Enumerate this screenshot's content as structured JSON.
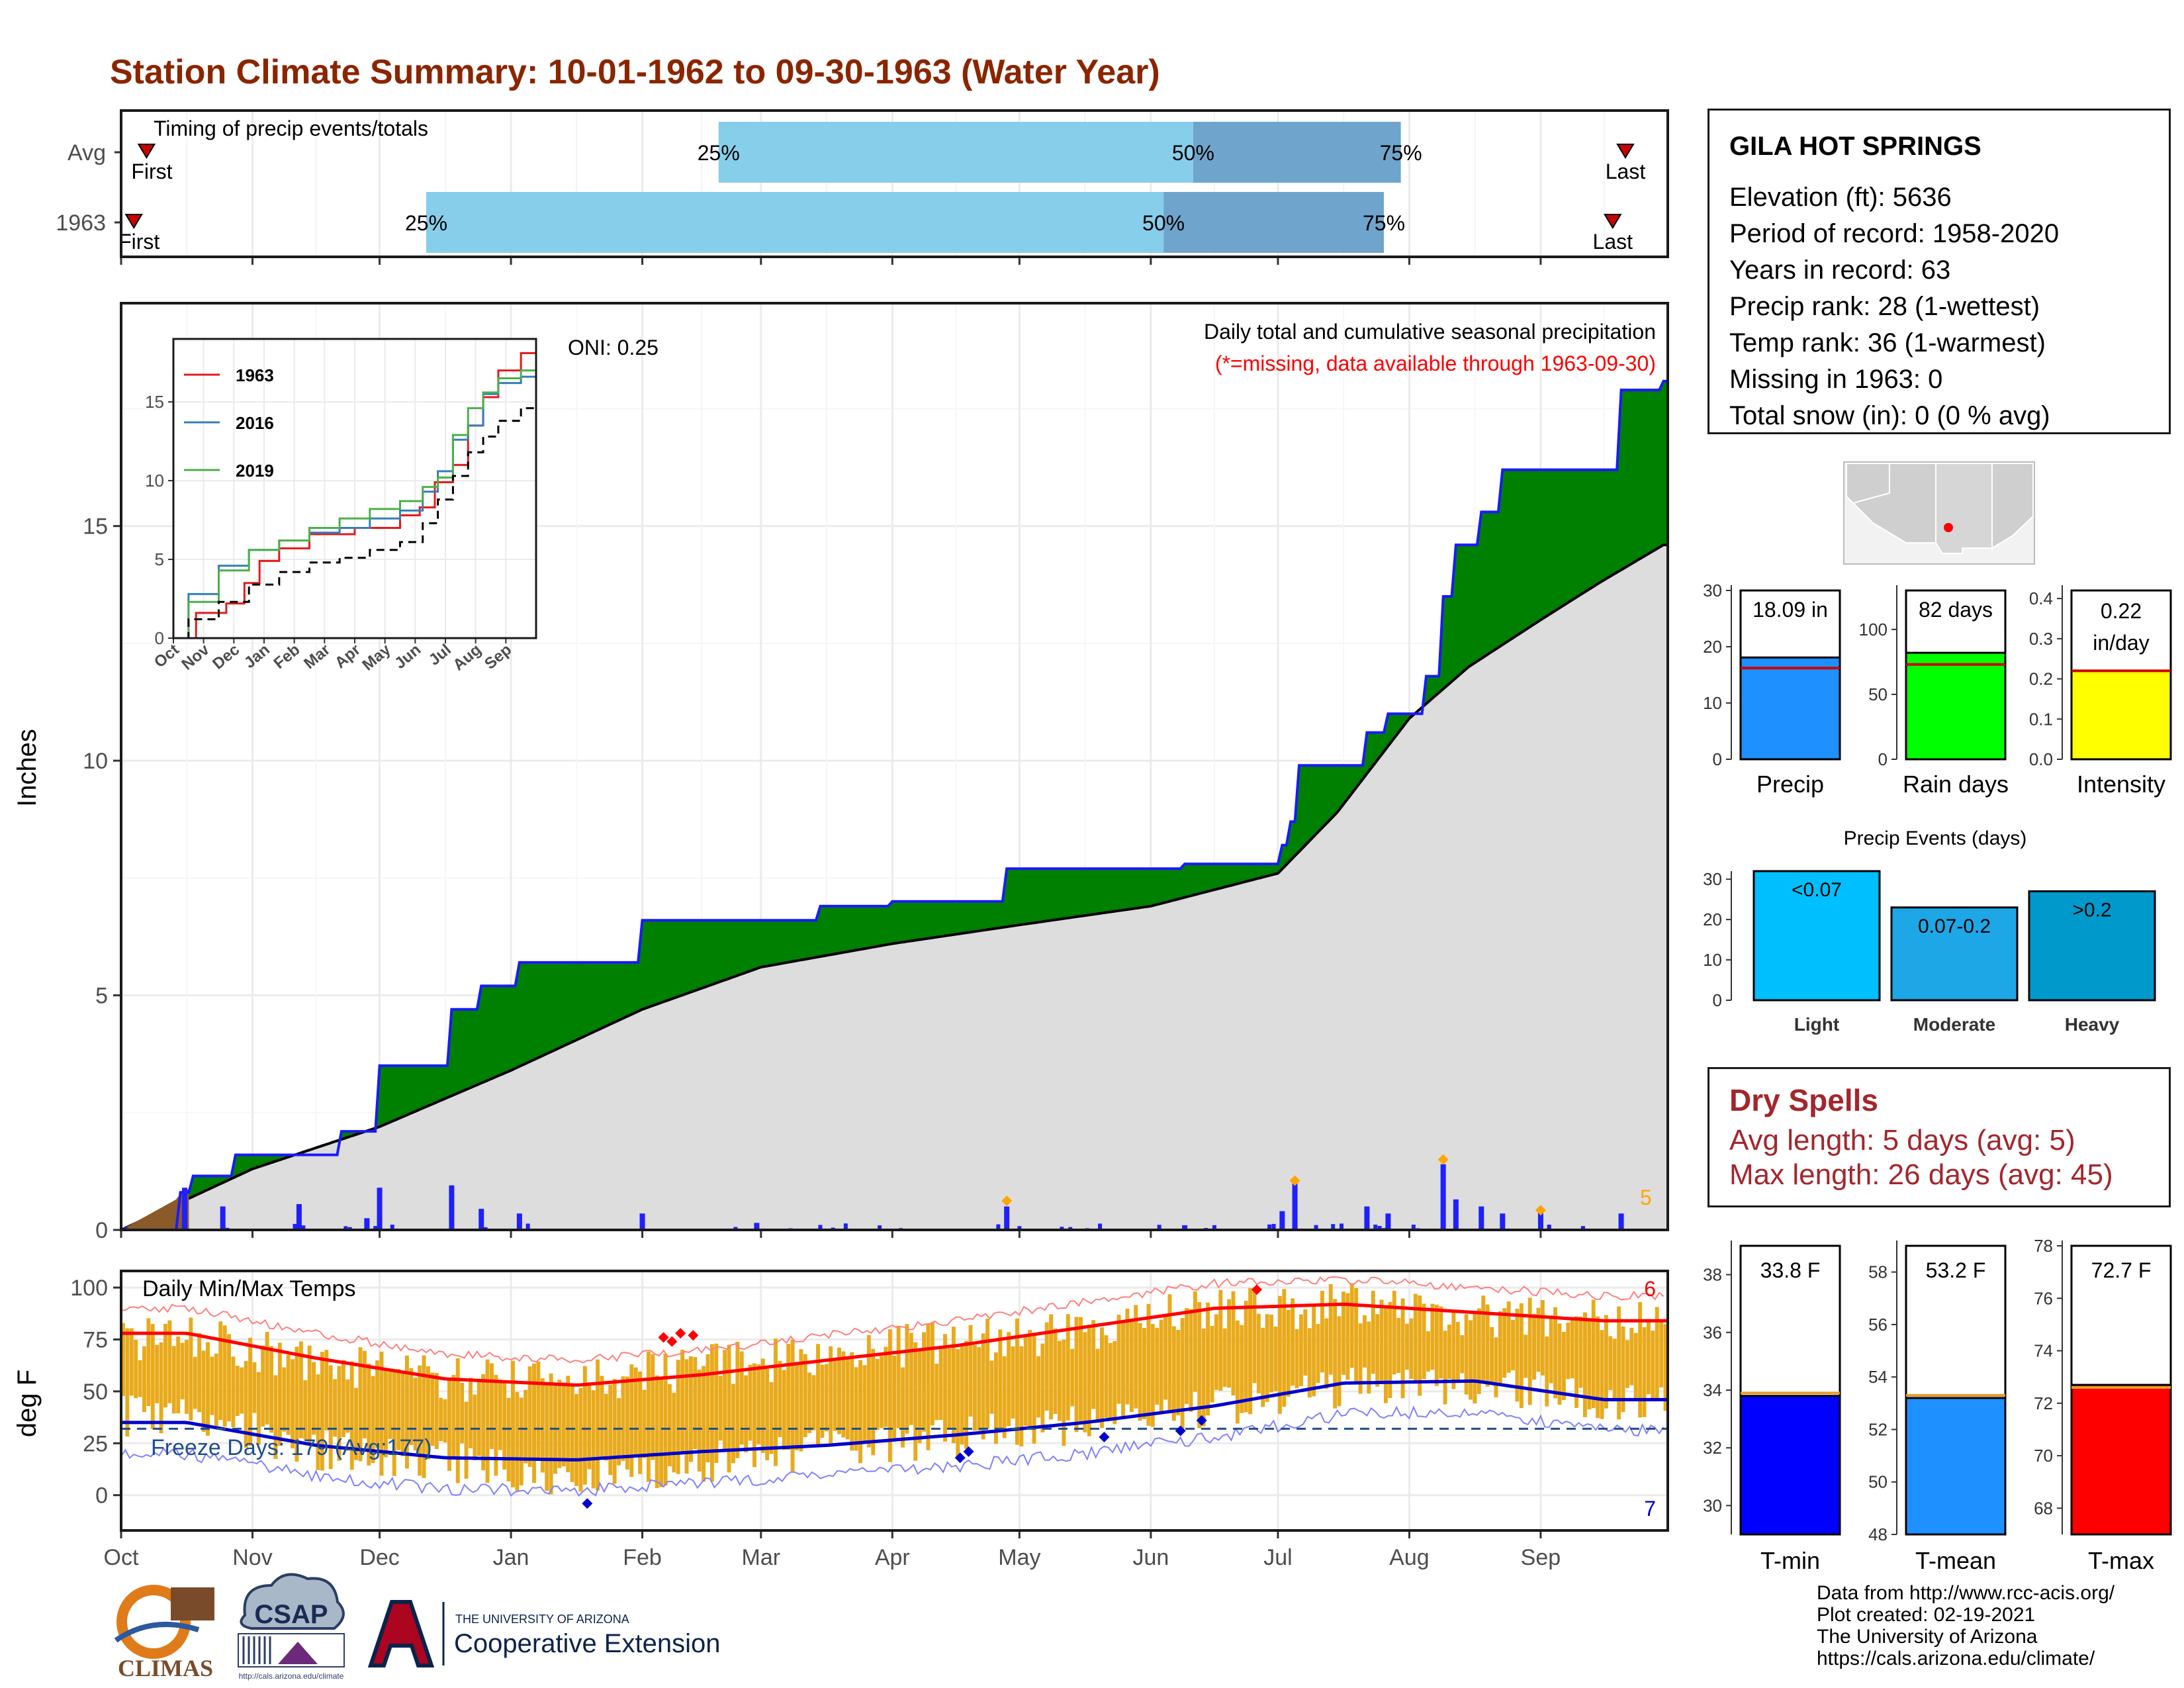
{
  "title": "Station Climate Summary: 10-01-1962 to 09-30-1963 (Water Year)",
  "colors": {
    "title": "#8b2500",
    "cumulative_1963": "#008000",
    "cumulative_avg": "#dddddd",
    "daily_bars": "#1f1fff",
    "tmax_line": "#ff0000",
    "tmin_line": "#0000cc",
    "temp_bars": "#e8aa1c",
    "timing_q1": "#87ceeb",
    "timing_q2": "#6fa5cc",
    "dry_spells": "#a4262c"
  },
  "timing": {
    "title": "Timing of precip events/totals",
    "rows": [
      {
        "label": "Avg",
        "first_label": "First",
        "last_label": "Last",
        "p25": "25%",
        "p50": "50%",
        "p75": "75%"
      },
      {
        "label": "1963",
        "first_label": "First",
        "last_label": "Last",
        "p25": "25%",
        "p50": "50%",
        "p75": "75%"
      }
    ]
  },
  "precip_panel": {
    "ylabel": "Inches",
    "y_ticks": [
      "0",
      "5",
      "10",
      "15"
    ],
    "oni": "ONI: 0.25",
    "header": "Daily total and cumulative seasonal precipitation",
    "missing_note": "(*=missing, data available through 1963-09-30)",
    "extreme_count": "5"
  },
  "inset": {
    "y_ticks": [
      "0",
      "5",
      "10",
      "15"
    ],
    "x_ticks": [
      "Oct",
      "Nov",
      "Dec",
      "Jan",
      "Feb",
      "Mar",
      "Apr",
      "May",
      "Jun",
      "Jul",
      "Aug",
      "Sep"
    ],
    "legend": [
      {
        "name": "1963",
        "color": "#e41a1c"
      },
      {
        "name": "2016",
        "color": "#377eb8"
      },
      {
        "name": "2019",
        "color": "#4daf4a"
      }
    ]
  },
  "temp_panel": {
    "title": "Daily Min/Max Temps",
    "ylabel": "deg F",
    "y_ticks": [
      "0",
      "25",
      "50",
      "75",
      "100"
    ],
    "freeze_label": "Freeze Days: 179 (Avg:177)",
    "hot_count": "6",
    "cold_count": "7"
  },
  "month_labels": [
    "Oct",
    "Nov",
    "Dec",
    "Jan",
    "Feb",
    "Mar",
    "Apr",
    "May",
    "Jun",
    "Jul",
    "Aug",
    "Sep"
  ],
  "station": {
    "name": "GILA HOT SPRINGS",
    "lines": [
      "Elevation (ft): 5636",
      "Period of record: 1958-2020",
      "Years in record: 63",
      "Precip rank: 28 (1-wettest)",
      "Temp rank: 36 (1-warmest)",
      "Missing in 1963: 0",
      "Total snow (in): 0 (0 % avg)"
    ]
  },
  "mini_bars": [
    {
      "label": "Precip",
      "value_text": "18.09 in",
      "value": 18.09,
      "avg": 16.2,
      "ylim": [
        0,
        30
      ],
      "ticks": [
        "0",
        "10",
        "20",
        "30"
      ],
      "color": "#1e90ff"
    },
    {
      "label": "Rain days",
      "value_text": "82 days",
      "value": 82,
      "avg": 73,
      "ylim": [
        0,
        130
      ],
      "ticks": [
        "0",
        "50",
        "100"
      ],
      "color": "#00ff00"
    },
    {
      "label": "Intensity",
      "value_text": "0.22 in/day",
      "value": 0.22,
      "avg": 0.22,
      "ylim": [
        0,
        0.42
      ],
      "ticks": [
        "0.0",
        "0.1",
        "0.2",
        "0.3",
        "0.4"
      ],
      "color": "#ffff00"
    }
  ],
  "events": {
    "title": "Precip Events (days)",
    "ticks": [
      "0",
      "10",
      "20",
      "30"
    ],
    "ylim": [
      0,
      32
    ],
    "categories": [
      "Light",
      "Moderate",
      "Heavy"
    ],
    "bar_labels": [
      "<0.07",
      "0.07-0.2",
      ">0.2"
    ],
    "values": [
      32,
      23,
      27
    ],
    "colors": [
      "#00bfff",
      "#1ea7e6",
      "#0099cc"
    ]
  },
  "dry_spells": {
    "title": "Dry Spells",
    "lines": [
      "Avg length: 5 days (avg: 5)",
      "Max length: 26 days (avg: 45)"
    ]
  },
  "temp_bars": [
    {
      "label": "T-min",
      "value_text": "33.8 F",
      "value": 33.8,
      "avg": 33.9,
      "ylim": [
        29,
        39
      ],
      "ticks": [
        "30",
        "32",
        "34",
        "36",
        "38"
      ],
      "color": "#0000ff"
    },
    {
      "label": "T-mean",
      "value_text": "53.2 F",
      "value": 53.2,
      "avg": 53.3,
      "ylim": [
        48,
        59
      ],
      "ticks": [
        "48",
        "50",
        "52",
        "54",
        "56",
        "58"
      ],
      "color": "#1e90ff"
    },
    {
      "label": "T-max",
      "value_text": "72.7 F",
      "value": 72.7,
      "avg": 72.6,
      "ylim": [
        67,
        78
      ],
      "ticks": [
        "68",
        "70",
        "72",
        "74",
        "76",
        "78"
      ],
      "color": "#ff0000"
    }
  ],
  "footer": {
    "lines": [
      "Data from http://www.rcc-acis.org/",
      "Plot created: 02-19-2021",
      "The University of Arizona",
      "https://cals.arizona.edu/climate/"
    ]
  },
  "logos": {
    "climas": "CLIMAS",
    "csap": "CSAP",
    "csap_url": "http://cals.arizona.edu/climate",
    "ua_small": "THE UNIVERSITY OF ARIZONA",
    "ua_big": "Cooperative Extension"
  },
  "chart_data": [
    {
      "type": "area",
      "title": "Daily total and cumulative seasonal precipitation",
      "ylabel": "Inches",
      "ylim": [
        0,
        19.5
      ],
      "x_range": [
        "1962-10-01",
        "1963-09-30"
      ],
      "series": [
        {
          "name": "1963",
          "x": [
            "1962-10-01",
            "1962-10-15",
            "1962-10-18",
            "1962-10-28",
            "1962-11-22",
            "1962-12-01",
            "1962-12-18",
            "1962-12-25",
            "1963-01-03",
            "1963-02-01",
            "1963-03-15",
            "1963-04-01",
            "1963-04-28",
            "1963-06-09",
            "1963-07-02",
            "1963-07-04",
            "1963-07-06",
            "1963-07-22",
            "1963-07-27",
            "1963-08-05",
            "1963-08-09",
            "1963-08-12",
            "1963-08-18",
            "1963-08-23",
            "1963-09-20",
            "1963-09-30"
          ],
          "y": [
            0,
            0.8,
            1.15,
            1.6,
            2.1,
            3.5,
            4.7,
            5.2,
            5.7,
            6.6,
            6.9,
            7.0,
            7.7,
            7.8,
            8.2,
            8.7,
            9.9,
            10.6,
            11.0,
            11.8,
            13.5,
            14.6,
            15.3,
            16.2,
            17.9,
            18.09
          ]
        },
        {
          "name": "Avg",
          "x": [
            "1962-10-01",
            "1962-11-01",
            "1962-12-01",
            "1963-01-01",
            "1963-02-01",
            "1963-03-01",
            "1963-04-01",
            "1963-05-01",
            "1963-06-01",
            "1963-07-01",
            "1963-07-15",
            "1963-08-01",
            "1963-08-15",
            "1963-09-01",
            "1963-09-15",
            "1963-09-30"
          ],
          "y": [
            0,
            1.3,
            2.2,
            3.4,
            4.7,
            5.6,
            6.1,
            6.5,
            6.9,
            7.6,
            8.9,
            10.9,
            12.0,
            13.0,
            13.8,
            14.6
          ]
        }
      ],
      "daily_precip": {
        "x": [
          "1962-10-16",
          "1962-10-25",
          "1962-11-12",
          "1962-11-28",
          "1962-12-01",
          "1962-12-18",
          "1962-12-25",
          "1963-01-03",
          "1963-02-01",
          "1963-02-28",
          "1963-04-28",
          "1963-06-09",
          "1963-07-02",
          "1963-07-05",
          "1963-07-22",
          "1963-07-27",
          "1963-08-09",
          "1963-08-12",
          "1963-08-18",
          "1963-08-23",
          "1963-09-01",
          "1963-09-20"
        ],
        "y": [
          0.9,
          0.5,
          0.55,
          0.25,
          0.9,
          0.95,
          0.45,
          0.35,
          0.35,
          0.15,
          0.5,
          0.1,
          0.4,
          1.0,
          0.5,
          0.35,
          1.4,
          0.65,
          0.5,
          0.35,
          0.4,
          0.35
        ]
      }
    },
    {
      "type": "line",
      "title": "",
      "ylim": [
        0,
        19
      ],
      "categories": [
        "Oct",
        "Nov",
        "Dec",
        "Jan",
        "Feb",
        "Mar",
        "Apr",
        "May",
        "Jun",
        "Jul",
        "Aug",
        "Sep"
      ],
      "series": [
        {
          "name": "1963",
          "x": [
            0,
            1.5,
            2,
            2.7,
            3,
            4,
            5,
            7,
            8,
            8.3,
            9,
            9.5,
            10,
            10.5,
            11,
            12
          ],
          "y": [
            0,
            1.6,
            2.2,
            3.5,
            4.9,
            5.7,
            6.6,
            7.0,
            7.8,
            8.3,
            9.9,
            11.0,
            13.5,
            15.3,
            17.0,
            18.1
          ]
        },
        {
          "name": "2016",
          "x": [
            0,
            1,
            2,
            3,
            4,
            5,
            6,
            7,
            8,
            8.5,
            9,
            9.5,
            10,
            10.5,
            11,
            12
          ],
          "y": [
            0,
            2.8,
            4.6,
            5.6,
            6.2,
            6.7,
            7.0,
            7.6,
            8.1,
            9.3,
            10.6,
            12.6,
            13.5,
            15.5,
            16.2,
            16.6
          ]
        },
        {
          "name": "2019",
          "x": [
            0,
            1,
            2,
            3,
            4,
            5,
            6,
            7,
            8,
            8.5,
            9,
            9.5,
            10,
            10.5,
            11,
            12
          ],
          "y": [
            0,
            2.3,
            4.3,
            5.6,
            6.2,
            7.0,
            7.6,
            8.2,
            8.7,
            9.6,
            10.2,
            12.9,
            14.6,
            15.6,
            16.5,
            17.0
          ]
        },
        {
          "name": "Avg",
          "x": [
            0,
            1,
            2,
            3,
            4,
            5,
            6,
            7,
            8,
            8.5,
            9,
            9.5,
            10,
            10.5,
            11,
            12
          ],
          "y": [
            0,
            1.2,
            2.3,
            3.4,
            4.2,
            4.8,
            5.1,
            5.6,
            6.1,
            7.3,
            8.8,
            10.3,
            11.8,
            12.8,
            13.8,
            14.6
          ]
        }
      ]
    },
    {
      "type": "bar",
      "title": "Daily Min/Max Temps",
      "ylabel": "deg F",
      "ylim": [
        -17,
        108
      ],
      "categories": [
        "Oct",
        "Nov",
        "Dec",
        "Jan",
        "Feb",
        "Mar",
        "Apr",
        "May",
        "Jun",
        "Jul",
        "Aug",
        "Sep"
      ],
      "series": [
        {
          "name": "Tmax",
          "values": [
            76,
            65,
            56,
            54,
            62,
            68,
            74,
            80,
            89,
            92,
            87,
            84
          ]
        },
        {
          "name": "Tmin",
          "values": [
            38,
            22,
            16,
            8,
            16,
            22,
            28,
            34,
            42,
            52,
            54,
            46
          ]
        },
        {
          "name": "Avg Tmax",
          "values": [
            78,
            66,
            56,
            53,
            58,
            65,
            72,
            81,
            90,
            92,
            88,
            84
          ]
        },
        {
          "name": "Avg Tmin",
          "values": [
            35,
            24,
            18,
            17,
            21,
            24,
            29,
            35,
            43,
            54,
            55,
            46
          ]
        }
      ],
      "freeze_line": 32
    }
  ]
}
